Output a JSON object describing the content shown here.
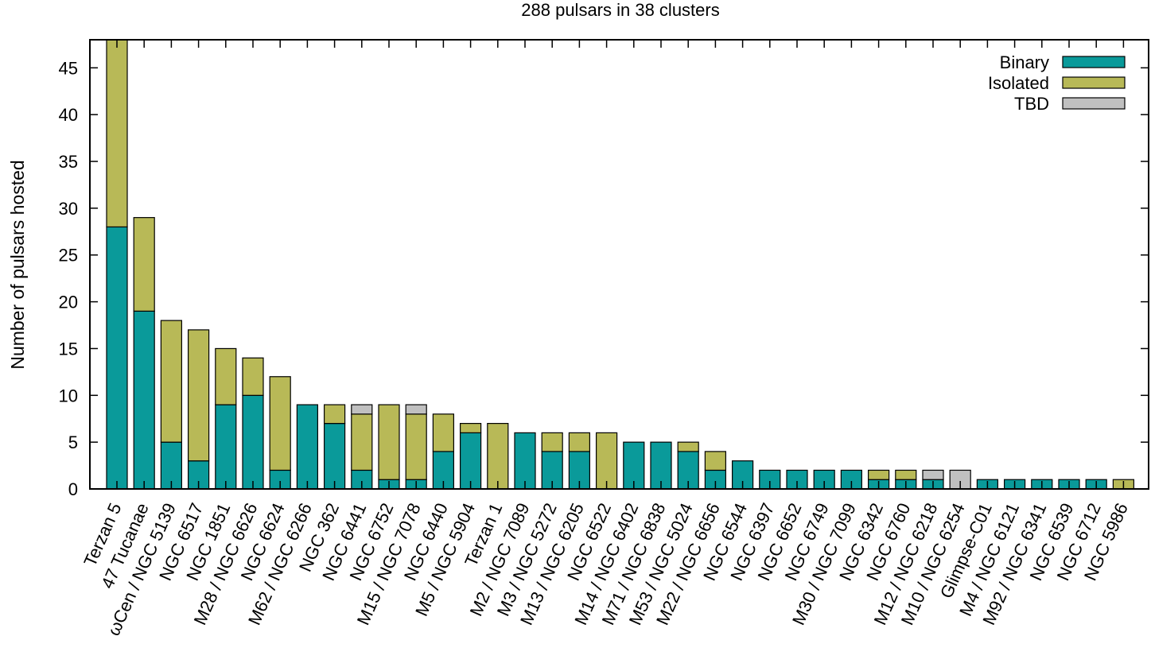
{
  "chart_data": {
    "type": "bar",
    "stacked": true,
    "title": "288 pulsars in 38 clusters",
    "xlabel": "",
    "ylabel": "Number of pulsars hosted",
    "ylim": [
      0,
      48
    ],
    "yticks": [
      0,
      5,
      10,
      15,
      20,
      25,
      30,
      35,
      40,
      45
    ],
    "grid": false,
    "legend_position": "top-right",
    "categories": [
      "Terzan 5",
      "47 Tucanae",
      "ωCen / NGC 5139",
      "NGC 6517",
      "NGC 1851",
      "M28 / NGC 6626",
      "NGC 6624",
      "M62 / NGC 6266",
      "NGC 362",
      "NGC 6441",
      "NGC 6752",
      "M15 / NGC 7078",
      "NGC 6440",
      "M5 / NGC 5904",
      "Terzan 1",
      "M2 / NGC 7089",
      "M3 / NGC 5272",
      "M13 / NGC 6205",
      "NGC 6522",
      "M14 / NGC 6402",
      "M71 / NGC 6838",
      "M53 / NGC 5024",
      "M22 / NGC 6656",
      "NGC 6544",
      "NGC 6397",
      "NGC 6652",
      "NGC 6749",
      "M30 / NGC 7099",
      "NGC 6342",
      "NGC 6760",
      "M12 / NGC 6218",
      "M10 / NGC 6254",
      "Glimpse-C01",
      "M4 / NGC 6121",
      "M92 / NGC 6341",
      "NGC 6539",
      "NGC 6712",
      "NGC 5986"
    ],
    "series": [
      {
        "name": "Binary",
        "color": "#0a9a9a",
        "values": [
          28,
          19,
          5,
          3,
          9,
          10,
          2,
          9,
          7,
          2,
          1,
          1,
          4,
          6,
          0,
          6,
          4,
          4,
          0,
          5,
          5,
          4,
          2,
          3,
          2,
          2,
          2,
          2,
          1,
          1,
          1,
          0,
          1,
          1,
          1,
          1,
          1,
          0
        ]
      },
      {
        "name": "Isolated",
        "color": "#b8b957",
        "values": [
          20,
          10,
          13,
          14,
          6,
          4,
          10,
          0,
          2,
          6,
          8,
          7,
          4,
          1,
          7,
          0,
          2,
          2,
          6,
          0,
          0,
          1,
          2,
          0,
          0,
          0,
          0,
          0,
          1,
          1,
          0,
          0,
          0,
          0,
          0,
          0,
          0,
          1
        ]
      },
      {
        "name": "TBD",
        "color": "#c0c0c0",
        "values": [
          0,
          0,
          0,
          0,
          0,
          0,
          0,
          0,
          0,
          1,
          0,
          1,
          0,
          0,
          0,
          0,
          0,
          0,
          0,
          0,
          0,
          0,
          0,
          0,
          0,
          0,
          0,
          0,
          0,
          0,
          1,
          2,
          0,
          0,
          0,
          0,
          0,
          0
        ]
      }
    ]
  }
}
